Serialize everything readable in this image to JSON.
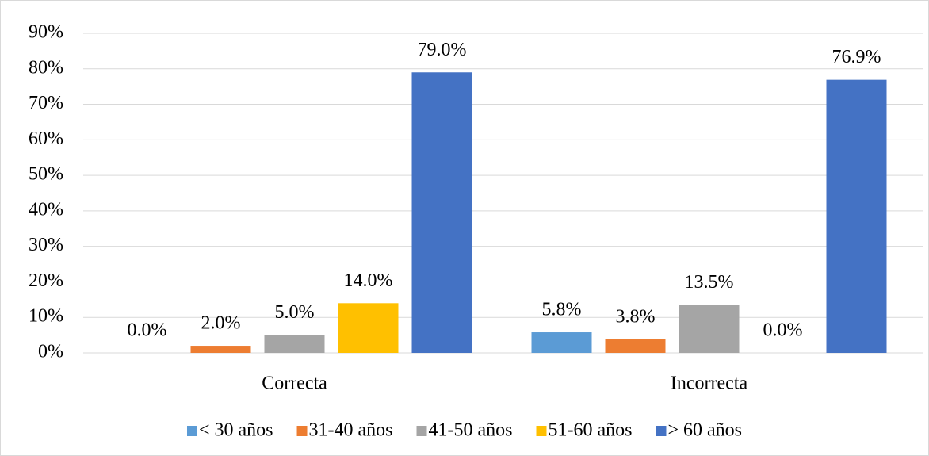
{
  "chart_data": {
    "type": "bar",
    "categories": [
      "Correcta",
      "Incorrecta"
    ],
    "series": [
      {
        "name": "< 30 años",
        "color": "#5b9bd5",
        "values": [
          0.0,
          5.8
        ],
        "value_labels": [
          "0.0%",
          "5.8%"
        ]
      },
      {
        "name": "31-40 años",
        "color": "#ed7d31",
        "values": [
          2.0,
          3.8
        ],
        "value_labels": [
          "2.0%",
          "3.8%"
        ]
      },
      {
        "name": "41-50 años",
        "color": "#a5a5a5",
        "values": [
          5.0,
          13.5
        ],
        "value_labels": [
          "5.0%",
          "13.5%"
        ]
      },
      {
        "name": "51-60 años",
        "color": "#ffc000",
        "values": [
          14.0,
          0.0
        ],
        "value_labels": [
          "14.0%",
          "0.0%"
        ]
      },
      {
        "name": "> 60 años",
        "color": "#4472c4",
        "values": [
          79.0,
          76.9
        ],
        "value_labels": [
          "79.0%",
          "76.9%"
        ]
      }
    ],
    "ylim": [
      0,
      90
    ],
    "yticks": [
      {
        "value": 0,
        "label": "0%"
      },
      {
        "value": 10,
        "label": "10%"
      },
      {
        "value": 20,
        "label": "20%"
      },
      {
        "value": 30,
        "label": "30%"
      },
      {
        "value": 40,
        "label": "40%"
      },
      {
        "value": 50,
        "label": "50%"
      },
      {
        "value": 60,
        "label": "60%"
      },
      {
        "value": 70,
        "label": "70%"
      },
      {
        "value": 80,
        "label": "80%"
      },
      {
        "value": 90,
        "label": "90%"
      }
    ],
    "grid": true,
    "legend": "bottom"
  }
}
